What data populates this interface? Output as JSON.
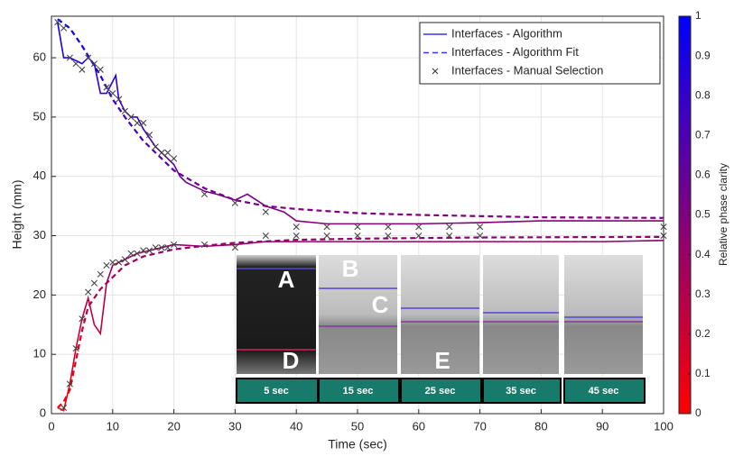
{
  "chart_data": {
    "type": "line",
    "xlabel": "Time (sec)",
    "ylabel": "Height (mm)",
    "xlim": [
      0,
      100
    ],
    "xticks": [
      0,
      10,
      20,
      30,
      40,
      50,
      60,
      70,
      80,
      90,
      100
    ],
    "ylim": [
      0,
      67
    ],
    "yticks": [
      0,
      10,
      20,
      30,
      40,
      50,
      60
    ],
    "grid": true,
    "legend": "upper right",
    "colorbar": {
      "label": "Relative phase clarity",
      "colors": [
        "#ff0000",
        "#0000ff"
      ],
      "lim": [
        0,
        1
      ],
      "ticks": [
        0,
        0.1,
        0.2,
        0.3,
        0.4,
        0.5,
        0.6,
        0.7,
        0.8,
        0.9,
        1
      ]
    },
    "series": [
      {
        "name": "Interfaces - Algorithm",
        "style": "solid",
        "color": "#3333ff",
        "x": [
          1,
          2,
          3,
          5,
          6,
          7,
          8,
          9,
          10,
          10.5,
          11,
          12,
          13,
          14,
          15,
          17,
          19,
          20,
          21,
          22,
          25,
          27,
          30,
          32,
          35,
          38,
          40,
          45,
          50,
          55,
          60,
          70,
          80,
          90,
          100
        ],
        "values": [
          66,
          60,
          60,
          59,
          60,
          59,
          54,
          54,
          56,
          57,
          53,
          51,
          50,
          50,
          48,
          45,
          43,
          42,
          40,
          39,
          37.5,
          37,
          36,
          37,
          35,
          34,
          32.5,
          32,
          32,
          32,
          32,
          32.2,
          32.5,
          32.5,
          32.5
        ]
      },
      {
        "style": "solid",
        "x": [
          1,
          2,
          3,
          4,
          5,
          6,
          7,
          8,
          9,
          10,
          12,
          14,
          16,
          18,
          20,
          25,
          30,
          35,
          40,
          50,
          60,
          70,
          80,
          90,
          100
        ],
        "values": [
          1,
          0.5,
          5,
          11,
          16,
          19.5,
          15,
          13.5,
          22,
          25,
          26,
          27,
          27.5,
          28,
          28.5,
          28.2,
          28.5,
          29,
          29,
          29,
          29,
          29,
          29,
          29,
          29.2
        ]
      },
      {
        "name": "Interfaces - Algorithm Fit",
        "style": "dashed",
        "color": "#3333ff",
        "x": [
          1,
          3,
          5,
          8,
          10,
          12,
          15,
          18,
          20,
          25,
          30,
          35,
          40,
          50,
          60,
          70,
          80,
          100
        ],
        "values": [
          66.5,
          65,
          62,
          57,
          53,
          50,
          46,
          43,
          41,
          38,
          36,
          35,
          34.5,
          33.8,
          33.5,
          33.3,
          33.1,
          33
        ]
      },
      {
        "style": "dashed",
        "x": [
          1,
          2,
          3,
          4,
          5,
          6,
          8,
          10,
          12,
          15,
          20,
          25,
          30,
          40,
          50,
          70,
          100
        ],
        "values": [
          1,
          2,
          4,
          9,
          14,
          18,
          21,
          23,
          25,
          26.5,
          27.7,
          28.3,
          28.8,
          29.3,
          29.5,
          29.7,
          29.8
        ]
      },
      {
        "name": "Interfaces - Manual Selection",
        "style": "marker",
        "color": "#333333",
        "x": [
          1,
          2,
          3,
          4,
          5,
          6,
          7,
          8,
          9,
          10,
          11,
          12,
          13,
          14,
          15,
          16,
          17,
          18,
          19,
          20,
          25,
          30,
          35,
          40,
          45,
          50,
          55,
          60,
          65,
          70,
          100
        ],
        "values": [
          66,
          65,
          60,
          59,
          58,
          60,
          59,
          58,
          55,
          54,
          53,
          51,
          50,
          49,
          49,
          47,
          45,
          44,
          44,
          43,
          37,
          35.5,
          34,
          31.5,
          31.5,
          31.5,
          31.5,
          31.5,
          31.5,
          31.5,
          31.5
        ]
      },
      {
        "style": "marker",
        "x": [
          2,
          3,
          4,
          5,
          6,
          7,
          8,
          9,
          10,
          11,
          12,
          13,
          14,
          15,
          16,
          17,
          18,
          19,
          20,
          25,
          30,
          35,
          40,
          45,
          50,
          55,
          60,
          65,
          70,
          100
        ],
        "values": [
          1,
          5,
          11,
          16,
          20.5,
          22,
          23.5,
          25,
          25.5,
          25.5,
          26,
          27,
          27,
          27.5,
          27.5,
          28,
          28,
          28,
          28.5,
          28.5,
          28,
          30,
          30,
          30,
          30,
          30,
          30,
          30,
          30,
          30
        ]
      }
    ],
    "inset": {
      "frames": [
        "5 sec",
        "15 sec",
        "25 sec",
        "35 sec",
        "45 sec"
      ],
      "letters": [
        "A",
        "B",
        "C",
        "D",
        "E"
      ]
    }
  }
}
